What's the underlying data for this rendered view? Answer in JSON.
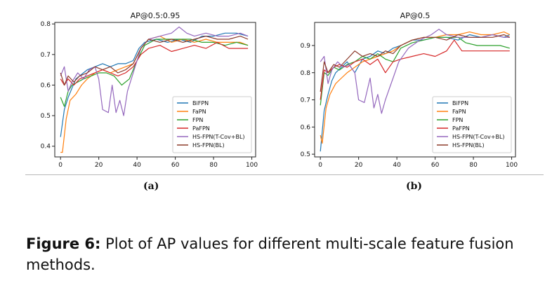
{
  "figure": {
    "label_a": "(a)",
    "label_b": "(b)",
    "caption_bold": "Figure 6:",
    "caption_text": " Plot of AP values for different multi-scale feature fusion methods."
  },
  "chart_data": [
    {
      "type": "line",
      "title": "AP@0.5:0.95",
      "xlabel": "",
      "ylabel": "",
      "xlim": [
        -3,
        102
      ],
      "ylim": [
        0.365,
        0.805
      ],
      "xticks": [
        0,
        20,
        40,
        60,
        80,
        100
      ],
      "yticks": [
        0.4,
        0.5,
        0.6,
        0.7,
        0.8
      ],
      "ytick_labels": [
        "0.4",
        "0.5",
        "0.6",
        "0.7",
        "0.8"
      ],
      "legend_position": "lower-right",
      "series": [
        {
          "name": "BiFPN",
          "color": "#1f77b4",
          "x": [
            0,
            2,
            4,
            6,
            8,
            10,
            14,
            18,
            22,
            26,
            30,
            34,
            38,
            41,
            44,
            50,
            56,
            62,
            68,
            74,
            80,
            86,
            92,
            98
          ],
          "y": [
            0.43,
            0.52,
            0.56,
            0.59,
            0.62,
            0.63,
            0.65,
            0.66,
            0.67,
            0.66,
            0.67,
            0.67,
            0.68,
            0.72,
            0.74,
            0.75,
            0.74,
            0.75,
            0.74,
            0.76,
            0.76,
            0.77,
            0.77,
            0.76
          ]
        },
        {
          "name": "FaPN",
          "color": "#ff7f0e",
          "x": [
            0,
            1,
            3,
            5,
            8,
            11,
            14,
            18,
            22,
            26,
            30,
            34,
            38,
            42,
            46,
            52,
            58,
            64,
            70,
            76,
            82,
            88,
            94,
            98
          ],
          "y": [
            0.38,
            0.38,
            0.49,
            0.55,
            0.57,
            0.6,
            0.62,
            0.64,
            0.65,
            0.64,
            0.65,
            0.66,
            0.67,
            0.72,
            0.75,
            0.76,
            0.74,
            0.75,
            0.74,
            0.75,
            0.74,
            0.74,
            0.74,
            0.73
          ]
        },
        {
          "name": "FPN",
          "color": "#2ca02c",
          "x": [
            0,
            2,
            4,
            6,
            9,
            12,
            16,
            20,
            24,
            28,
            32,
            36,
            40,
            44,
            50,
            56,
            62,
            68,
            74,
            80,
            86,
            92,
            98
          ],
          "y": [
            0.56,
            0.53,
            0.58,
            0.6,
            0.61,
            0.62,
            0.63,
            0.64,
            0.64,
            0.63,
            0.6,
            0.62,
            0.68,
            0.73,
            0.75,
            0.75,
            0.75,
            0.75,
            0.74,
            0.74,
            0.73,
            0.74,
            0.73
          ]
        },
        {
          "name": "PaFPN",
          "color": "#d62728",
          "x": [
            0,
            2,
            4,
            7,
            10,
            14,
            18,
            22,
            26,
            30,
            34,
            38,
            42,
            46,
            52,
            58,
            64,
            70,
            76,
            82,
            88,
            94,
            98
          ],
          "y": [
            0.62,
            0.6,
            0.62,
            0.6,
            0.62,
            0.63,
            0.64,
            0.65,
            0.64,
            0.63,
            0.64,
            0.66,
            0.7,
            0.72,
            0.73,
            0.71,
            0.72,
            0.73,
            0.72,
            0.74,
            0.72,
            0.72,
            0.72
          ]
        },
        {
          "name": "HS-FPN(T-Cov+BL)",
          "color": "#9467bd",
          "x": [
            0,
            2,
            4,
            6,
            9,
            12,
            15,
            18,
            20,
            22,
            25,
            27,
            29,
            31,
            33,
            35,
            37,
            39,
            42,
            46,
            52,
            58,
            62,
            66,
            70,
            76,
            82,
            88,
            94,
            98
          ],
          "y": [
            0.63,
            0.66,
            0.58,
            0.61,
            0.64,
            0.62,
            0.65,
            0.66,
            0.62,
            0.52,
            0.51,
            0.6,
            0.51,
            0.55,
            0.5,
            0.58,
            0.62,
            0.66,
            0.72,
            0.75,
            0.76,
            0.77,
            0.79,
            0.77,
            0.76,
            0.77,
            0.76,
            0.76,
            0.77,
            0.76
          ]
        },
        {
          "name": "HS-FPN(BL)",
          "color": "#8c3a2b",
          "x": [
            0,
            2,
            4,
            7,
            10,
            14,
            18,
            22,
            26,
            30,
            34,
            38,
            42,
            46,
            52,
            58,
            64,
            70,
            76,
            82,
            88,
            94,
            98
          ],
          "y": [
            0.64,
            0.6,
            0.63,
            0.61,
            0.63,
            0.64,
            0.66,
            0.65,
            0.66,
            0.64,
            0.65,
            0.67,
            0.72,
            0.75,
            0.74,
            0.75,
            0.74,
            0.75,
            0.76,
            0.75,
            0.75,
            0.76,
            0.75
          ]
        }
      ]
    },
    {
      "type": "line",
      "title": "AP@0.5",
      "xlabel": "",
      "ylabel": "",
      "xlim": [
        -3,
        102
      ],
      "ylim": [
        0.49,
        0.985
      ],
      "xticks": [
        0,
        20,
        40,
        60,
        80,
        100
      ],
      "yticks": [
        0.5,
        0.6,
        0.7,
        0.8,
        0.9
      ],
      "ytick_labels": [
        "0.5",
        "0.6",
        "0.7",
        "0.8",
        "0.9"
      ],
      "legend_position": "lower-right",
      "series": [
        {
          "name": "BiFPN",
          "color": "#1f77b4",
          "x": [
            0,
            2,
            4,
            6,
            8,
            11,
            14,
            18,
            22,
            26,
            30,
            34,
            38,
            42,
            48,
            54,
            60,
            66,
            72,
            78,
            84,
            90,
            96,
            99
          ],
          "y": [
            0.51,
            0.66,
            0.72,
            0.77,
            0.8,
            0.82,
            0.84,
            0.8,
            0.85,
            0.86,
            0.88,
            0.87,
            0.89,
            0.9,
            0.92,
            0.92,
            0.93,
            0.93,
            0.92,
            0.94,
            0.93,
            0.94,
            0.93,
            0.94
          ]
        },
        {
          "name": "FaPN",
          "color": "#ff7f0e",
          "x": [
            0,
            1,
            3,
            5,
            8,
            11,
            14,
            18,
            22,
            26,
            30,
            34,
            38,
            42,
            48,
            54,
            60,
            66,
            72,
            78,
            84,
            90,
            96,
            99
          ],
          "y": [
            0.57,
            0.54,
            0.67,
            0.72,
            0.76,
            0.78,
            0.8,
            0.82,
            0.84,
            0.85,
            0.86,
            0.87,
            0.88,
            0.9,
            0.92,
            0.93,
            0.93,
            0.94,
            0.94,
            0.95,
            0.94,
            0.94,
            0.95,
            0.94
          ]
        },
        {
          "name": "FPN",
          "color": "#2ca02c",
          "x": [
            0,
            2,
            4,
            7,
            10,
            14,
            18,
            22,
            26,
            30,
            34,
            38,
            42,
            48,
            54,
            60,
            66,
            72,
            76,
            82,
            88,
            94,
            99
          ],
          "y": [
            0.68,
            0.8,
            0.79,
            0.82,
            0.81,
            0.83,
            0.84,
            0.86,
            0.85,
            0.87,
            0.85,
            0.84,
            0.89,
            0.91,
            0.92,
            0.93,
            0.93,
            0.93,
            0.91,
            0.9,
            0.9,
            0.9,
            0.89
          ]
        },
        {
          "name": "PaFPN",
          "color": "#d62728",
          "x": [
            0,
            2,
            4,
            7,
            10,
            14,
            18,
            22,
            26,
            30,
            34,
            38,
            42,
            48,
            54,
            60,
            66,
            70,
            74,
            80,
            86,
            92,
            99
          ],
          "y": [
            0.7,
            0.81,
            0.8,
            0.82,
            0.83,
            0.82,
            0.84,
            0.85,
            0.83,
            0.85,
            0.8,
            0.84,
            0.85,
            0.86,
            0.87,
            0.86,
            0.88,
            0.92,
            0.88,
            0.88,
            0.88,
            0.88,
            0.88
          ]
        },
        {
          "name": "HS-FPN(T-Cov+BL)",
          "color": "#9467bd",
          "x": [
            0,
            2,
            4,
            6,
            9,
            12,
            15,
            18,
            20,
            23,
            26,
            28,
            30,
            32,
            34,
            36,
            38,
            41,
            46,
            52,
            58,
            62,
            66,
            72,
            78,
            84,
            90,
            96,
            99
          ],
          "y": [
            0.84,
            0.86,
            0.76,
            0.81,
            0.84,
            0.82,
            0.83,
            0.8,
            0.7,
            0.69,
            0.78,
            0.67,
            0.72,
            0.65,
            0.7,
            0.74,
            0.78,
            0.84,
            0.89,
            0.92,
            0.94,
            0.96,
            0.94,
            0.93,
            0.93,
            0.93,
            0.94,
            0.93,
            0.93
          ]
        },
        {
          "name": "HS-FPN(BL)",
          "color": "#8c3a2b",
          "x": [
            0,
            2,
            4,
            7,
            10,
            14,
            18,
            22,
            26,
            30,
            34,
            38,
            42,
            48,
            54,
            60,
            66,
            72,
            78,
            84,
            90,
            96,
            99
          ],
          "y": [
            0.73,
            0.84,
            0.8,
            0.83,
            0.82,
            0.85,
            0.88,
            0.86,
            0.87,
            0.86,
            0.88,
            0.87,
            0.9,
            0.92,
            0.93,
            0.93,
            0.92,
            0.94,
            0.93,
            0.93,
            0.93,
            0.94,
            0.93
          ]
        }
      ]
    }
  ]
}
